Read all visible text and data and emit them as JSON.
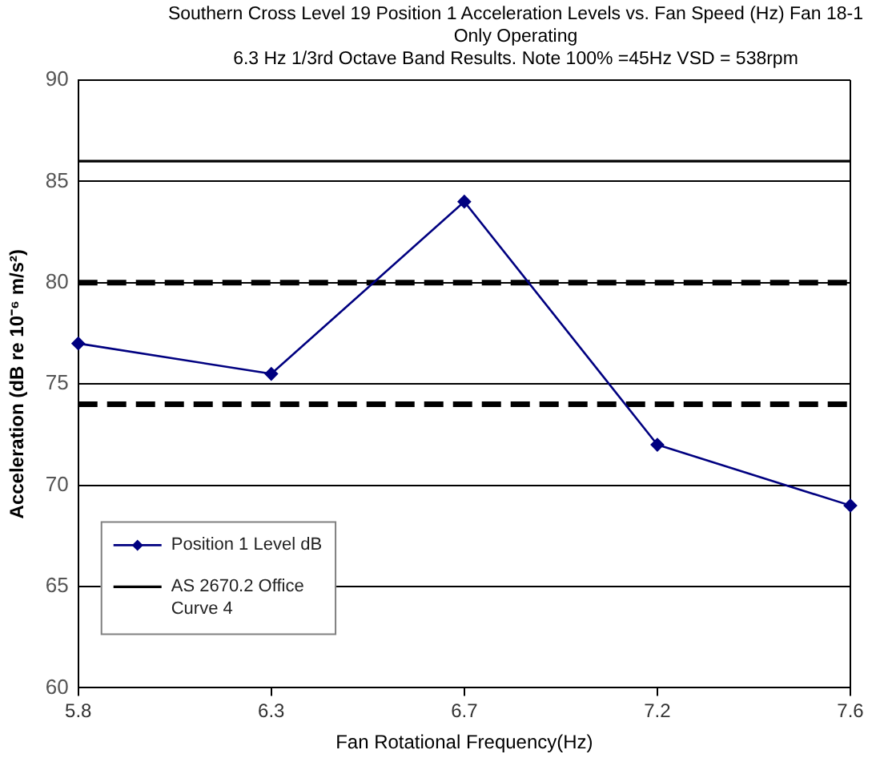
{
  "chart_data": {
    "type": "line",
    "title": "Southern Cross Level 19 Position 1 Acceleration Levels vs. Fan Speed (Hz) Fan 18-1 Only Operating",
    "subtitle": "6.3 Hz 1/3rd Octave Band Results. Note 100% =45Hz VSD = 538rpm",
    "xlabel": "Fan Rotational Frequency(Hz)",
    "ylabel": "Acceleration (dB re 10⁻⁶ m/s²)",
    "categories": [
      "5.8",
      "6.3",
      "6.7",
      "7.2",
      "7.6"
    ],
    "series": [
      {
        "name": "Position 1 Level dB",
        "color": "#000080",
        "values": [
          77,
          75.5,
          84,
          72,
          69
        ]
      }
    ],
    "ylim": [
      60,
      90
    ],
    "yticks": [
      60,
      65,
      70,
      75,
      80,
      85,
      90
    ],
    "ref_lines": [
      {
        "axis": "y",
        "value": 86,
        "label": "AS 2670.2 Office Curve 4",
        "color": "#000000"
      },
      {
        "axis": "y",
        "value": 80,
        "color": "#000000",
        "line_style": "dashed"
      },
      {
        "axis": "y",
        "value": 74,
        "color": "#000000",
        "line_style": "dashed"
      }
    ],
    "grid": "y",
    "legend": "bottom left",
    "marker": "diamond"
  }
}
